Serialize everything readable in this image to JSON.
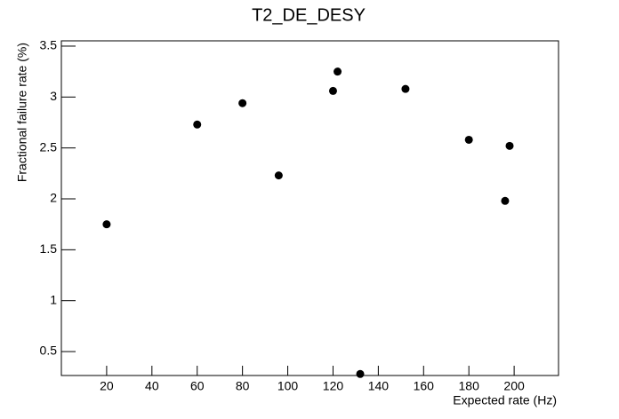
{
  "chart_data": {
    "type": "scatter",
    "title": "T2_DE_DESY",
    "x_label": "Expected rate (Hz)",
    "y_label": "Fractional failure rate (%)",
    "x": [
      20,
      60,
      80,
      96,
      120,
      122,
      132,
      152,
      180,
      196,
      198
    ],
    "values": [
      1.75,
      2.73,
      2.94,
      2.23,
      3.06,
      3.25,
      0.28,
      3.08,
      2.58,
      1.98,
      2.52
    ],
    "color": "#000000",
    "xlim": [
      0,
      219.6
    ],
    "ylim": [
      0.265,
      3.552
    ],
    "xticks": [
      20,
      40,
      60,
      80,
      100,
      120,
      140,
      160,
      180,
      200
    ],
    "yticks": [
      0.5,
      1,
      1.5,
      2,
      2.5,
      3,
      3.5
    ]
  }
}
